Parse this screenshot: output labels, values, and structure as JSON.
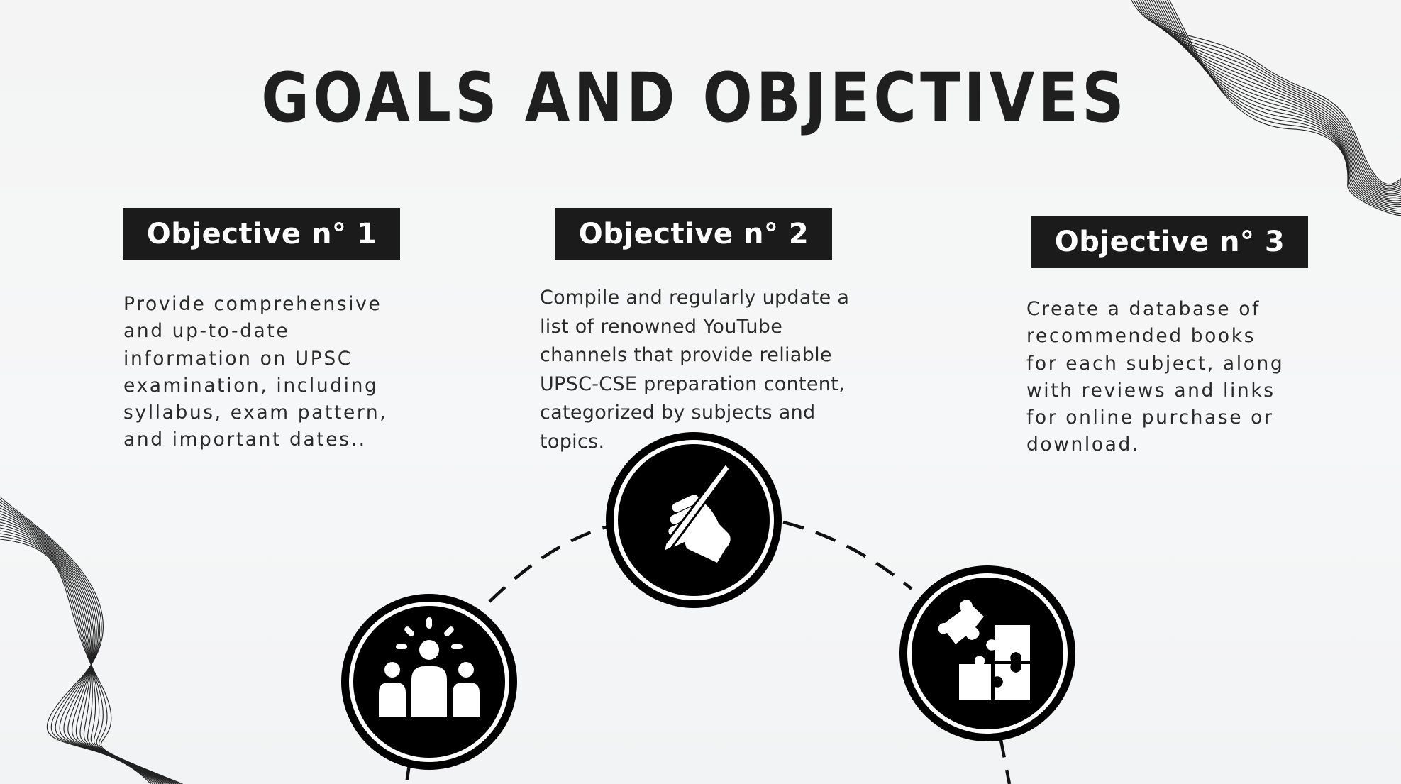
{
  "title": "GOALS AND OBJECTIVES",
  "objectives": [
    {
      "label": "Objective n° 1",
      "description": "Provide comprehensive\nand up-to-date\ninformation on UPSC\nexamination, including\nsyllabus, exam pattern,\nand important dates..",
      "icon": "team-idea-icon"
    },
    {
      "label": "Objective n° 2",
      "description": "Compile and regularly update a\nlist of renowned YouTube\nchannels that provide reliable\nUPSC-CSE preparation content,\ncategorized by subjects and\ntopics.",
      "icon": "hand-pen-icon"
    },
    {
      "label": "Objective n° 3",
      "description": " Create a database of\nrecommended books\nfor each subject, along\nwith reviews and links\nfor online purchase or\ndownload.",
      "icon": "puzzle-icon"
    }
  ],
  "colors": {
    "background": "#f5f6f7",
    "accent_dark": "#1b1b1b",
    "text": "#2a2a2a",
    "icon_fill": "#ffffff"
  }
}
